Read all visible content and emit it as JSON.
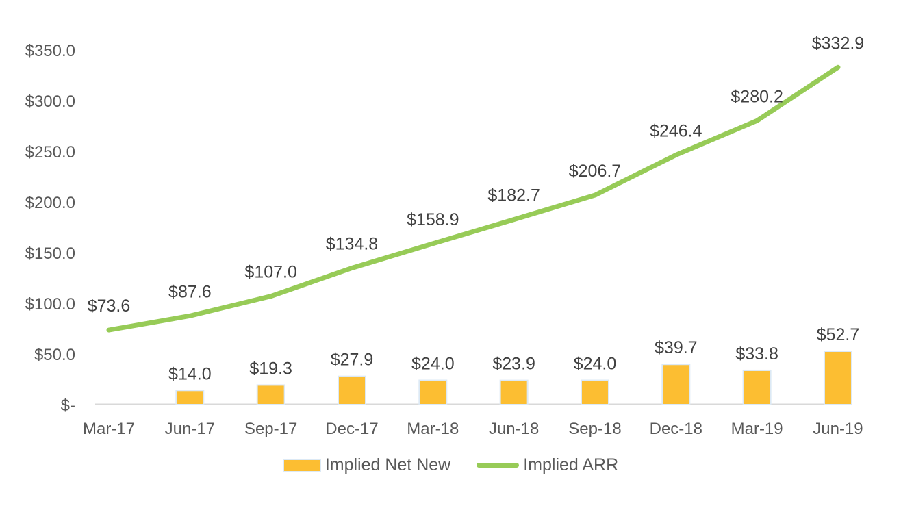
{
  "chart_data": {
    "type": "combo-bar-line",
    "title": "",
    "categories": [
      "Mar-17",
      "Jun-17",
      "Sep-17",
      "Dec-17",
      "Mar-18",
      "Jun-18",
      "Sep-18",
      "Dec-18",
      "Mar-19",
      "Jun-19"
    ],
    "series": [
      {
        "name": "Implied Net New",
        "type": "bar",
        "color": "#FCBE32",
        "border_color": "#DCE9F5",
        "values": [
          null,
          14.0,
          19.3,
          27.9,
          24.0,
          23.9,
          24.0,
          39.7,
          33.8,
          52.7
        ],
        "labels": [
          "",
          "$14.0",
          "$19.3",
          "$27.9",
          "$24.0",
          "$23.9",
          "$24.0",
          "$39.7",
          "$33.8",
          "$52.7"
        ]
      },
      {
        "name": "Implied ARR",
        "type": "line",
        "color": "#97CB57",
        "values": [
          73.6,
          87.6,
          107.0,
          134.8,
          158.9,
          182.7,
          206.7,
          246.4,
          280.2,
          332.9
        ],
        "labels": [
          "$73.6",
          "$87.6",
          "$107.0",
          "$134.8",
          "$158.9",
          "$182.7",
          "$206.7",
          "$246.4",
          "$280.2",
          "$332.9"
        ]
      }
    ],
    "y_axis": {
      "min": 0,
      "max": 350,
      "step": 50,
      "values": [
        350,
        300,
        250,
        200,
        150,
        100,
        50,
        0
      ],
      "tick_labels": [
        "$350.0",
        "$300.0",
        "$250.0",
        "$200.0",
        "$150.0",
        "$100.0",
        "$50.0",
        "$-"
      ]
    },
    "grid": "off",
    "legend_position": "bottom",
    "colors": {
      "axis_line": "#D9D9D9",
      "axis_text": "#595959",
      "data_label_text": "#404040",
      "background": "#FFFFFF"
    }
  }
}
